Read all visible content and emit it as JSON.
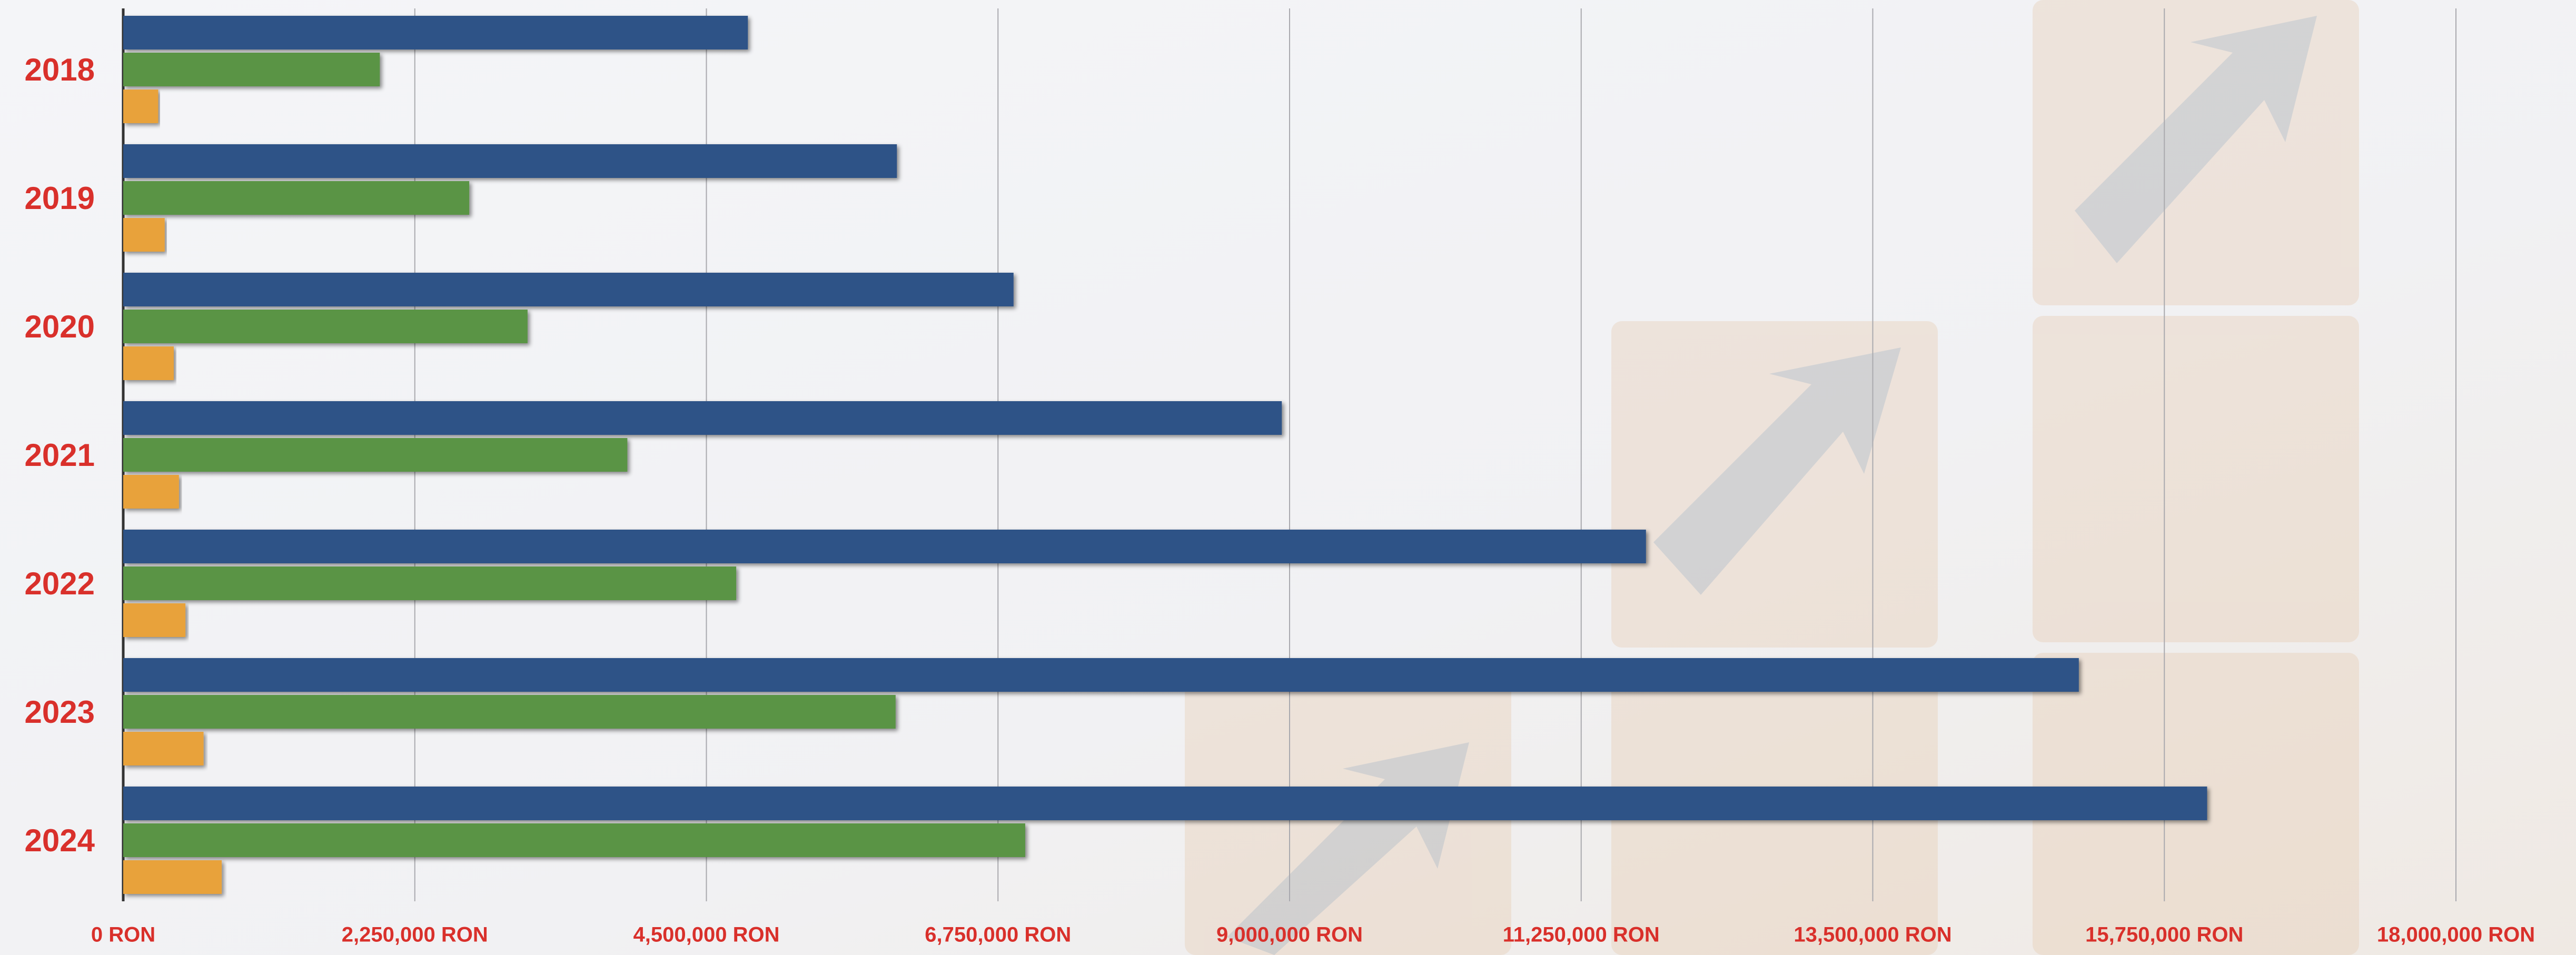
{
  "chart_data": {
    "type": "bar",
    "orientation": "horizontal",
    "categories": [
      "2018",
      "2019",
      "2020",
      "2021",
      "2022",
      "2023",
      "2024"
    ],
    "series": [
      {
        "color": "#2e5387",
        "values": [
          4820000,
          5970000,
          6870000,
          8940000,
          11750000,
          15090000,
          16080000
        ]
      },
      {
        "color": "#5a9444",
        "values": [
          1980000,
          2670000,
          3120000,
          3890000,
          4730000,
          5960000,
          6960000
        ]
      },
      {
        "color": "#e8a23a",
        "values": [
          270000,
          320000,
          390000,
          430000,
          480000,
          620000,
          760000
        ]
      }
    ],
    "xlim": [
      0,
      18000000
    ],
    "xticks": [
      {
        "value": 0,
        "label": "0 RON"
      },
      {
        "value": 2250000,
        "label": "2,250,000 RON"
      },
      {
        "value": 4500000,
        "label": "4,500,000 RON"
      },
      {
        "value": 6750000,
        "label": "6,750,000 RON"
      },
      {
        "value": 9000000,
        "label": "9,000,000 RON"
      },
      {
        "value": 11250000,
        "label": "11,250,000 RON"
      },
      {
        "value": 13500000,
        "label": "13,500,000 RON"
      },
      {
        "value": 15750000,
        "label": "15,750,000 RON"
      },
      {
        "value": 18000000,
        "label": "18,000,000 RON"
      }
    ],
    "grid": true
  }
}
